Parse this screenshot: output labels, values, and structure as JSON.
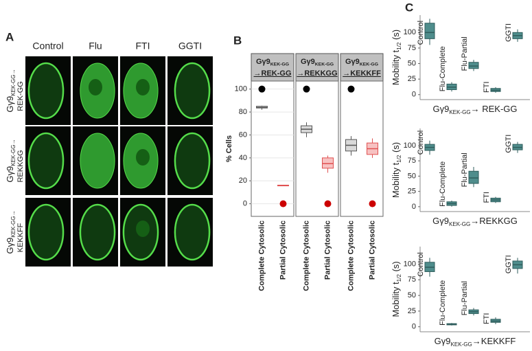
{
  "panel_a": {
    "label": "A",
    "columns": [
      "Control",
      "Flu",
      "FTI",
      "GGTI"
    ],
    "rows": [
      {
        "name": "Gγ9",
        "sub": "KEK-GG→",
        "target": "REK-GG"
      },
      {
        "name": "Gγ9",
        "sub": "KEK-GG→",
        "target": "REKKGG"
      },
      {
        "name": "Gγ9",
        "sub": "KEK-GG→",
        "target": "KEKKFF"
      }
    ]
  },
  "panel_labels": {
    "b": "B",
    "c": "C"
  },
  "chart_data": [
    {
      "type": "box",
      "title": {
        "name": "Gγ9",
        "sub": "KEK-GG",
        "target": "→REK-GG"
      },
      "ylabel": "% Cells",
      "ylim": [
        -11,
        107
      ],
      "yticks": [
        0,
        20,
        40,
        60,
        80,
        100
      ],
      "grid": true,
      "categories": [
        "Complete Cytosolic",
        "Partial Cytosolic"
      ],
      "boxes": [
        {
          "min": 82,
          "q1": 83.5,
          "median": 84,
          "q3": 85,
          "max": 85.5
        },
        {
          "min": 15.5,
          "q1": 15.8,
          "median": 16,
          "q3": 16.2,
          "max": 16.5
        }
      ],
      "colors": [
        "#d9d9d9",
        "#f7c1c1"
      ],
      "points": [
        100,
        0
      ],
      "point_colors": [
        "#000000",
        "#cc0000"
      ]
    },
    {
      "type": "box",
      "title": {
        "name": "Gγ9",
        "sub": "KEK-GG",
        "target": "→REKKGG"
      },
      "ylim": [
        -11,
        107
      ],
      "grid": false,
      "categories": [
        "Complete Cytosolic",
        "Partial Cytosolic"
      ],
      "boxes": [
        {
          "min": 58,
          "q1": 62,
          "median": 65,
          "q3": 68,
          "max": 71
        },
        {
          "min": 27,
          "q1": 31,
          "median": 35,
          "q3": 40,
          "max": 42
        }
      ],
      "colors": [
        "#d9d9d9",
        "#f7c1c1"
      ],
      "points": [
        100,
        0
      ],
      "point_colors": [
        "#000000",
        "#cc0000"
      ]
    },
    {
      "type": "box",
      "title": {
        "name": "Gγ9",
        "sub": "KEK-GG",
        "target": "→KEKKFF"
      },
      "ylim": [
        -11,
        107
      ],
      "grid": false,
      "categories": [
        "Complete Cytosolic",
        "Partial Cytosolic"
      ],
      "boxes": [
        {
          "min": 42,
          "q1": 46,
          "median": 51,
          "q3": 56,
          "max": 59
        },
        {
          "min": 40,
          "q1": 43,
          "median": 48,
          "q3": 53,
          "max": 57
        }
      ],
      "colors": [
        "#d9d9d9",
        "#f7c1c1"
      ],
      "points": [
        100,
        0
      ],
      "point_colors": [
        "#000000",
        "#cc0000"
      ]
    },
    {
      "type": "box",
      "ylabel": {
        "name": "Mobility t",
        "sub": "1/2",
        "target": " (s)"
      },
      "xlabel": {
        "name": "Gγ9",
        "sub": "KEK-GG",
        "target": "→ REK-GG"
      },
      "ylim": [
        -8,
        128
      ],
      "yticks": [
        0,
        25,
        50,
        75,
        100
      ],
      "categories": [
        "Control",
        "Flu-Complete",
        "Flu-Partial",
        "FTI",
        "GGTI"
      ],
      "boxes": [
        {
          "min": 80,
          "q1": 90,
          "median": 100,
          "q3": 115,
          "max": 122
        },
        {
          "min": 5,
          "q1": 8,
          "median": 12,
          "q3": 17,
          "max": 20
        },
        {
          "min": 38,
          "q1": 42,
          "median": 46,
          "q3": 52,
          "max": 56
        },
        {
          "min": 3,
          "q1": 5,
          "median": 7,
          "q3": 10,
          "max": 12
        },
        {
          "min": 85,
          "q1": 90,
          "median": 95,
          "q3": 100,
          "max": 105
        }
      ],
      "color": "#4f8d8c"
    },
    {
      "type": "box",
      "ylabel": {
        "name": "Mobility t",
        "sub": "1/2",
        "target": " (s)"
      },
      "xlabel": {
        "name": "Gγ9",
        "sub": "KEK-GG",
        "target": "→REKKGG"
      },
      "ylim": [
        -8,
        128
      ],
      "yticks": [
        0,
        25,
        50,
        75,
        100
      ],
      "categories": [
        "Control",
        "Flu-Complete",
        "Flu-Partial",
        "FTI",
        "GGTI"
      ],
      "boxes": [
        {
          "min": 85,
          "q1": 92,
          "median": 97,
          "q3": 102,
          "max": 108
        },
        {
          "min": 0,
          "q1": 2,
          "median": 5,
          "q3": 8,
          "max": 10
        },
        {
          "min": 32,
          "q1": 38,
          "median": 47,
          "q3": 58,
          "max": 65
        },
        {
          "min": 6,
          "q1": 8,
          "median": 11,
          "q3": 14,
          "max": 16
        },
        {
          "min": 88,
          "q1": 93,
          "median": 97,
          "q3": 102,
          "max": 106
        }
      ],
      "color": "#4f8d8c"
    },
    {
      "type": "box",
      "ylabel": {
        "name": "Mobility t",
        "sub": "1/2",
        "target": " (s)"
      },
      "xlabel": {
        "name": "Gγ9",
        "sub": "KEK-GG",
        "target": "→KEKKFF"
      },
      "ylim": [
        -8,
        128
      ],
      "yticks": [
        0,
        25,
        50,
        75,
        100
      ],
      "categories": [
        "Control",
        "Flu-Complete",
        "Flu-Partial",
        "FTI",
        "GGTI"
      ],
      "boxes": [
        {
          "min": 80,
          "q1": 88,
          "median": 95,
          "q3": 103,
          "max": 110
        },
        {
          "min": 2,
          "q1": 3,
          "median": 4,
          "q3": 5,
          "max": 6
        },
        {
          "min": 18,
          "q1": 21,
          "median": 24,
          "q3": 27,
          "max": 30
        },
        {
          "min": 4,
          "q1": 7,
          "median": 9,
          "q3": 12,
          "max": 15
        },
        {
          "min": 85,
          "q1": 93,
          "median": 99,
          "q3": 105,
          "max": 110
        }
      ],
      "color": "#4f8d8c"
    }
  ]
}
